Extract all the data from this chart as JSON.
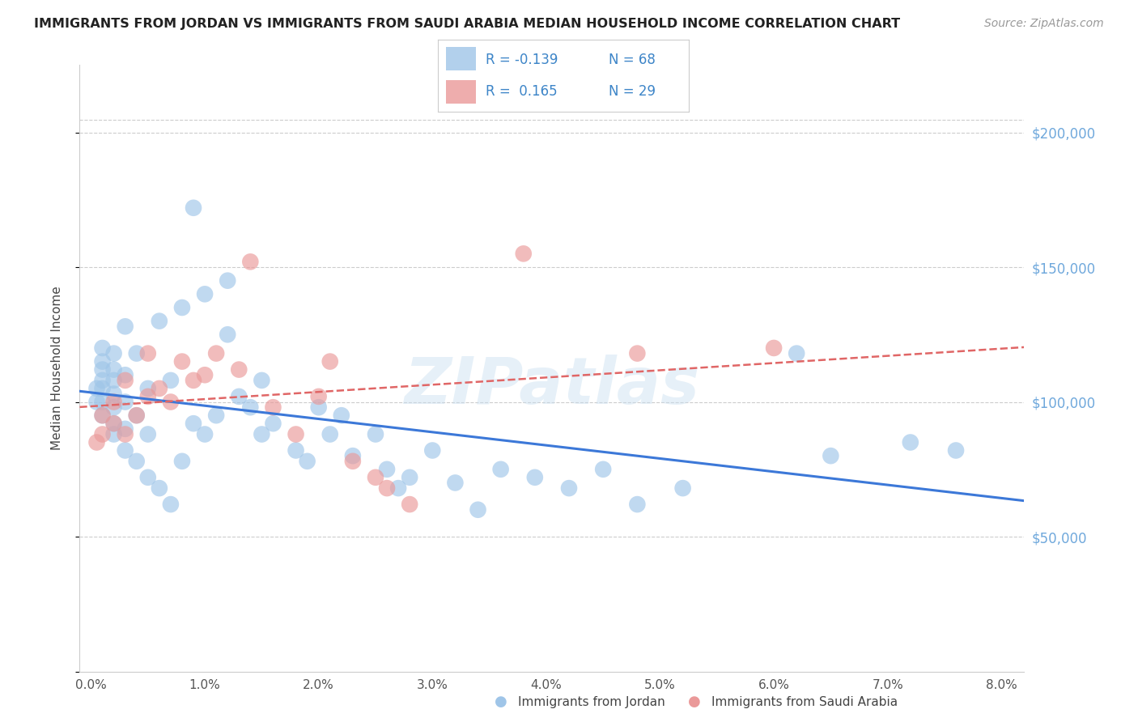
{
  "title": "IMMIGRANTS FROM JORDAN VS IMMIGRANTS FROM SAUDI ARABIA MEDIAN HOUSEHOLD INCOME CORRELATION CHART",
  "source": "Source: ZipAtlas.com",
  "ylabel": "Median Household Income",
  "watermark": "ZIPatlas",
  "legend_jordan_r": "-0.139",
  "legend_jordan_n": "68",
  "legend_saudi_r": "0.165",
  "legend_saudi_n": "29",
  "jordan_color": "#9fc5e8",
  "saudi_color": "#ea9999",
  "jordan_line_color": "#3c78d8",
  "saudi_line_color": "#e06666",
  "right_axis_color": "#6fa8dc",
  "legend_text_color": "#3d85c8",
  "yticks": [
    0,
    50000,
    100000,
    150000,
    200000
  ],
  "ytick_labels": [
    "",
    "$50,000",
    "$100,000",
    "$150,000",
    "$200,000"
  ],
  "xticks": [
    0.0,
    0.01,
    0.02,
    0.03,
    0.04,
    0.05,
    0.06,
    0.07,
    0.08
  ],
  "xlim": [
    -0.001,
    0.082
  ],
  "ylim": [
    0,
    225000
  ],
  "jordan_x": [
    0.0005,
    0.0005,
    0.001,
    0.001,
    0.001,
    0.001,
    0.001,
    0.001,
    0.001,
    0.002,
    0.002,
    0.002,
    0.002,
    0.002,
    0.002,
    0.002,
    0.003,
    0.003,
    0.003,
    0.003,
    0.003,
    0.004,
    0.004,
    0.004,
    0.005,
    0.005,
    0.005,
    0.006,
    0.006,
    0.007,
    0.007,
    0.008,
    0.008,
    0.009,
    0.009,
    0.01,
    0.01,
    0.011,
    0.012,
    0.012,
    0.013,
    0.014,
    0.015,
    0.015,
    0.016,
    0.018,
    0.019,
    0.02,
    0.021,
    0.022,
    0.023,
    0.025,
    0.026,
    0.027,
    0.028,
    0.03,
    0.032,
    0.034,
    0.036,
    0.039,
    0.042,
    0.045,
    0.048,
    0.052,
    0.062,
    0.065,
    0.072,
    0.076
  ],
  "jordan_y": [
    100000,
    105000,
    95000,
    100000,
    105000,
    108000,
    112000,
    115000,
    120000,
    88000,
    92000,
    98000,
    103000,
    108000,
    112000,
    118000,
    82000,
    90000,
    100000,
    110000,
    128000,
    78000,
    95000,
    118000,
    72000,
    88000,
    105000,
    68000,
    130000,
    62000,
    108000,
    78000,
    135000,
    92000,
    172000,
    88000,
    140000,
    95000,
    125000,
    145000,
    102000,
    98000,
    88000,
    108000,
    92000,
    82000,
    78000,
    98000,
    88000,
    95000,
    80000,
    88000,
    75000,
    68000,
    72000,
    82000,
    70000,
    60000,
    75000,
    72000,
    68000,
    75000,
    62000,
    68000,
    118000,
    80000,
    85000,
    82000
  ],
  "saudi_x": [
    0.0005,
    0.001,
    0.001,
    0.002,
    0.002,
    0.003,
    0.003,
    0.004,
    0.005,
    0.005,
    0.006,
    0.007,
    0.008,
    0.009,
    0.01,
    0.011,
    0.013,
    0.014,
    0.016,
    0.018,
    0.02,
    0.021,
    0.023,
    0.025,
    0.026,
    0.028,
    0.038,
    0.048,
    0.06
  ],
  "saudi_y": [
    85000,
    88000,
    95000,
    92000,
    100000,
    88000,
    108000,
    95000,
    102000,
    118000,
    105000,
    100000,
    115000,
    108000,
    110000,
    118000,
    112000,
    152000,
    98000,
    88000,
    102000,
    115000,
    78000,
    72000,
    68000,
    62000,
    155000,
    118000,
    120000
  ]
}
